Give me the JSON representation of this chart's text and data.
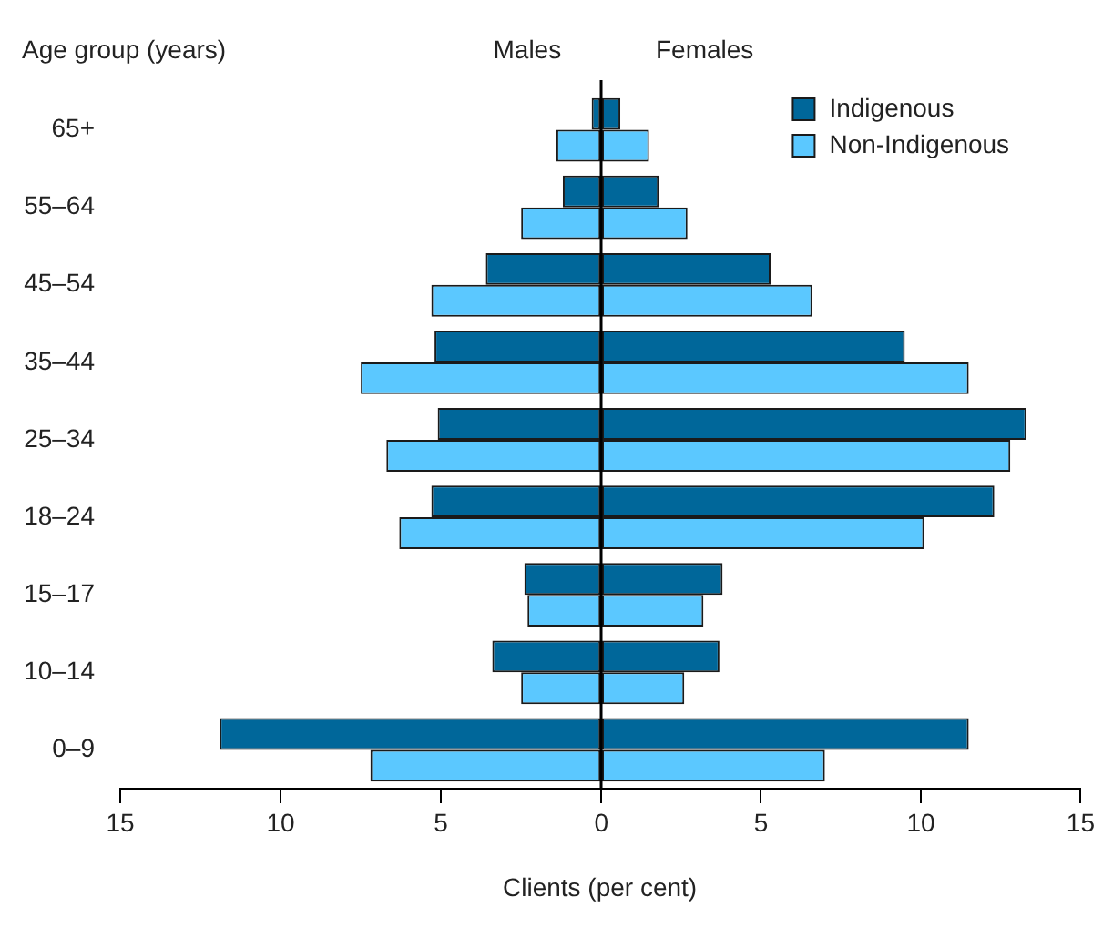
{
  "chart_data": [
    {
      "type": "bar",
      "orientation": "horizontal",
      "title": "Males",
      "ylabel": "Age group (years)",
      "xlabel": "Clients (per cent)",
      "categories": [
        "65+",
        "55–64",
        "45–54",
        "35–44",
        "25–34",
        "18–24",
        "15–17",
        "10–14",
        "0–9"
      ],
      "series": [
        {
          "color": "#00679a",
          "values": [
            0.3,
            1.2,
            3.6,
            5.2,
            5.1,
            5.3,
            2.4,
            3.4,
            11.9
          ]
        },
        {
          "color": "#5bc8ff",
          "values": [
            1.4,
            2.5,
            5.3,
            7.5,
            6.7,
            6.3,
            2.3,
            2.5,
            7.2
          ]
        }
      ],
      "xlim": [
        15,
        0
      ],
      "xticks": [
        15,
        10,
        5,
        0
      ]
    },
    {
      "type": "bar",
      "orientation": "horizontal",
      "title": "Females",
      "series": [
        {
          "name": "Indigenous",
          "color": "#00679a",
          "values": [
            0.6,
            1.8,
            5.3,
            9.5,
            13.3,
            12.3,
            3.8,
            3.7,
            11.5
          ]
        },
        {
          "name": "Non-Indigenous",
          "color": "#5bc8ff",
          "values": [
            1.5,
            2.7,
            6.6,
            11.5,
            12.8,
            10.1,
            3.2,
            2.6,
            7.0
          ]
        }
      ],
      "xlim": [
        0,
        15
      ],
      "xticks": [
        {
          "value": 0,
          "label": null
        },
        5,
        10,
        15
      ],
      "tick_labels": "x",
      "legend": "top right"
    }
  ]
}
